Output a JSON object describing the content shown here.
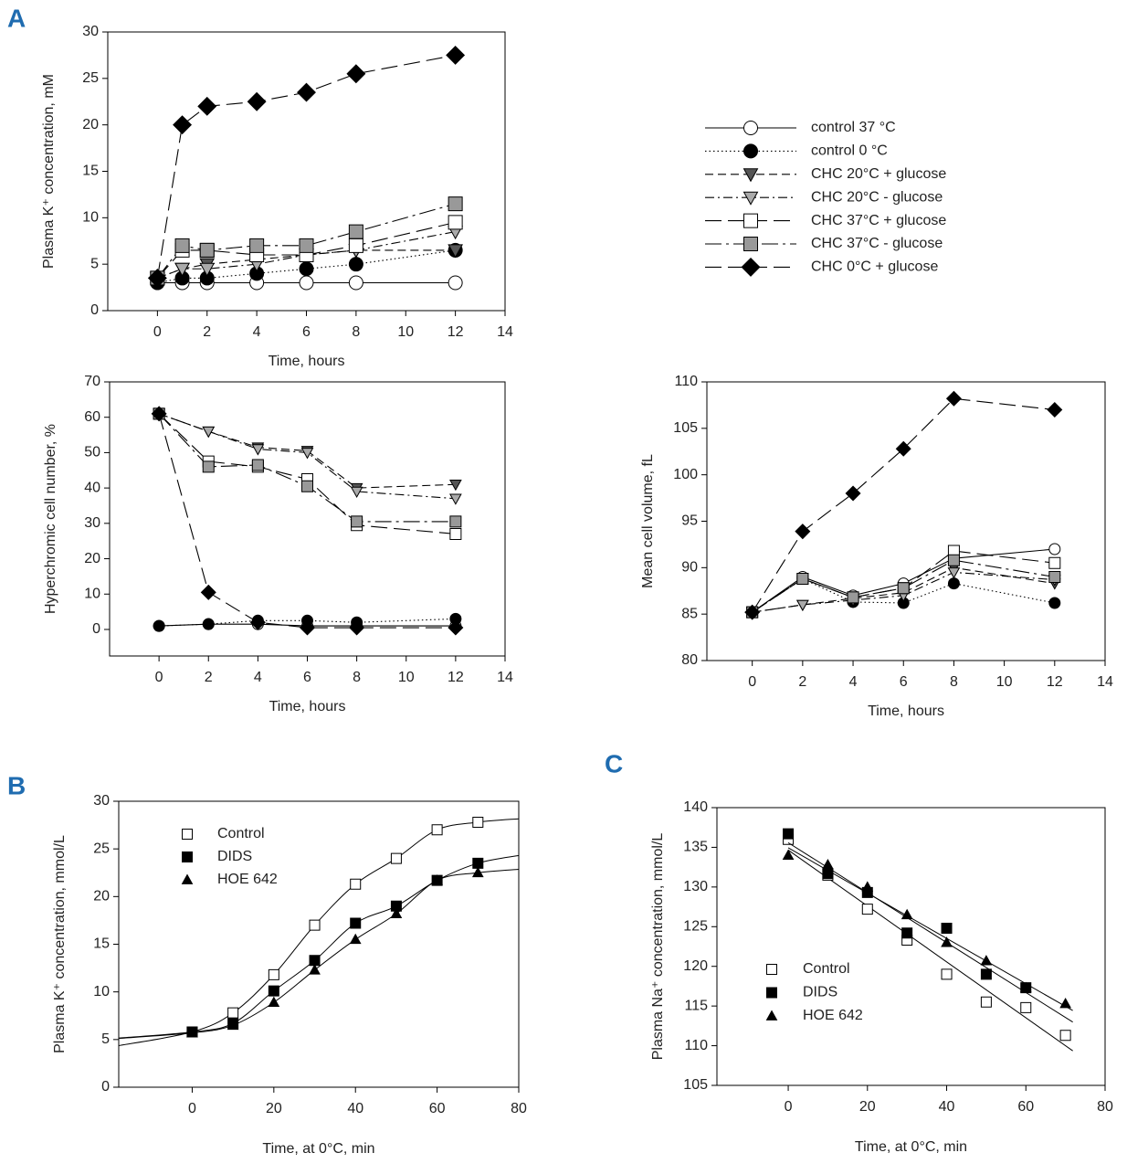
{
  "chart_data": [
    {
      "type": "line",
      "panel_label": "A",
      "xlabel": "Time, hours",
      "ylabel": "Plasma K⁺ concentration, mM",
      "x": [
        0,
        1,
        2,
        4,
        6,
        8,
        12
      ],
      "xlim": [
        -2,
        14
      ],
      "xticks": [
        0,
        2,
        4,
        6,
        8,
        10,
        12,
        14
      ],
      "ylim": [
        0,
        30
      ],
      "yticks": [
        0,
        5,
        10,
        15,
        20,
        25,
        30
      ],
      "line_color": "#000000",
      "legend": "outside-right",
      "series": [
        {
          "name": "control 37 °C",
          "color": "#ffffff",
          "marker": "circle",
          "dash": "solid",
          "values": [
            3,
            3,
            3,
            3,
            3,
            3,
            3
          ]
        },
        {
          "name": "control 0 °C",
          "color": "#000000",
          "marker": "circle",
          "dash": "dotted",
          "values": [
            3,
            3.5,
            3.5,
            4,
            4.5,
            5,
            6.5
          ]
        },
        {
          "name": "CHC 20°C + glucose",
          "color": "#555555",
          "marker": "triangle-down",
          "dash": "dashed",
          "values": [
            3.5,
            4.5,
            5,
            5.5,
            6,
            6.5,
            6.5
          ]
        },
        {
          "name": "CHC 20°C - glucose",
          "color": "#aaaaaa",
          "marker": "triangle-down",
          "dash": "dash-dot",
          "values": [
            3.5,
            4.5,
            4.5,
            5,
            6,
            6.5,
            8.5
          ]
        },
        {
          "name": "CHC 37°C + glucose",
          "color": "#ffffff",
          "marker": "square",
          "dash": "long-dash",
          "values": [
            3.5,
            6.5,
            6.5,
            6,
            6,
            7,
            9.5
          ]
        },
        {
          "name": "CHC 37°C - glucose",
          "color": "#999999",
          "marker": "square",
          "dash": "long-dash-dot",
          "values": [
            3.5,
            7,
            6.5,
            7,
            7,
            8.5,
            11.5
          ]
        },
        {
          "name": "CHC 0°C + glucose",
          "color": "#000000",
          "marker": "diamond",
          "dash": "long-dash",
          "values": [
            3.5,
            20,
            22,
            22.5,
            23.5,
            25.5,
            27.5
          ]
        }
      ]
    },
    {
      "type": "line",
      "xlabel": "Time, hours",
      "ylabel": "Hyperchromic cell number, %",
      "x": [
        0,
        2,
        4,
        6,
        8,
        12
      ],
      "xlim": [
        -2,
        14
      ],
      "xticks": [
        0,
        2,
        4,
        6,
        8,
        10,
        12,
        14
      ],
      "ylim": [
        -7.5,
        70
      ],
      "yticks": [
        0,
        10,
        20,
        30,
        40,
        50,
        60,
        70
      ],
      "line_color": "#000000",
      "series": [
        {
          "color": "#ffffff",
          "marker": "circle",
          "dash": "solid",
          "values": [
            1,
            1.5,
            1.5,
            1,
            1,
            1
          ]
        },
        {
          "color": "#000000",
          "marker": "circle",
          "dash": "dotted",
          "values": [
            1,
            1.5,
            2.5,
            2.5,
            2,
            3
          ]
        },
        {
          "color": "#555555",
          "marker": "triangle-down",
          "dash": "dashed",
          "values": [
            61,
            56,
            51.5,
            50.5,
            40,
            41
          ]
        },
        {
          "color": "#aaaaaa",
          "marker": "triangle-down",
          "dash": "dash-dot",
          "values": [
            61,
            56,
            51,
            50,
            39,
            37
          ]
        },
        {
          "color": "#ffffff",
          "marker": "square",
          "dash": "long-dash",
          "values": [
            61,
            47.5,
            46,
            42.5,
            29.5,
            27
          ]
        },
        {
          "color": "#999999",
          "marker": "square",
          "dash": "long-dash-dot",
          "values": [
            61,
            46,
            46.5,
            40.5,
            30.5,
            30.5
          ]
        },
        {
          "color": "#000000",
          "marker": "diamond",
          "dash": "long-dash",
          "values": [
            61,
            10.5,
            2,
            0.5,
            0.5,
            0.5
          ]
        }
      ]
    },
    {
      "type": "line",
      "xlabel": "Time, hours",
      "ylabel": "Mean cell volume, fL",
      "x": [
        0,
        2,
        4,
        6,
        8,
        12
      ],
      "xlim": [
        -1.8,
        14
      ],
      "xticks": [
        0,
        2,
        4,
        6,
        8,
        10,
        12,
        14
      ],
      "ylim": [
        80,
        110
      ],
      "yticks": [
        80,
        85,
        90,
        95,
        100,
        105,
        110
      ],
      "line_color": "#000000",
      "series": [
        {
          "color": "#ffffff",
          "marker": "circle",
          "dash": "solid",
          "values": [
            85.2,
            89,
            87,
            88.3,
            91,
            92
          ]
        },
        {
          "color": "#000000",
          "marker": "circle",
          "dash": "dotted",
          "values": [
            85.2,
            88.8,
            86.3,
            86.2,
            88.3,
            86.2
          ]
        },
        {
          "color": "#555555",
          "marker": "triangle-down",
          "dash": "dashed",
          "values": [
            85.2,
            86,
            86.7,
            87.3,
            90,
            88.3
          ]
        },
        {
          "color": "#aaaaaa",
          "marker": "triangle-down",
          "dash": "dash-dot",
          "values": [
            85.2,
            86,
            86.5,
            87,
            89.5,
            88.7
          ]
        },
        {
          "color": "#ffffff",
          "marker": "square",
          "dash": "long-dash",
          "values": [
            85.2,
            88.8,
            86.8,
            87.8,
            91.8,
            90.5
          ]
        },
        {
          "color": "#999999",
          "marker": "square",
          "dash": "long-dash-dot",
          "values": [
            85.2,
            88.8,
            86.8,
            87.8,
            90.8,
            89
          ]
        },
        {
          "color": "#000000",
          "marker": "diamond",
          "dash": "long-dash",
          "values": [
            85.2,
            93.9,
            98,
            102.8,
            108.2,
            107
          ]
        }
      ]
    },
    {
      "type": "scatter",
      "panel_label": "B",
      "xlabel": "Time, at 0°C, min",
      "ylabel": "Plasma K⁺ concentration, mmol/L",
      "x": [
        0,
        10,
        20,
        30,
        40,
        50,
        60,
        70
      ],
      "xlim": [
        -18,
        80
      ],
      "xticks": [
        0,
        20,
        40,
        60,
        80
      ],
      "ylim": [
        0,
        30
      ],
      "yticks": [
        0,
        5,
        10,
        15,
        20,
        25,
        30
      ],
      "fit": "smooth",
      "legend": "upper-left",
      "series": [
        {
          "name": "Control",
          "color": "#ffffff",
          "marker": "square",
          "values": [
            5.8,
            7.8,
            11.8,
            17,
            21.3,
            24,
            27,
            27.8
          ]
        },
        {
          "name": "DIDS",
          "color": "#000000",
          "marker": "square",
          "values": [
            5.8,
            6.7,
            10.1,
            13.3,
            17.2,
            19,
            21.7,
            23.5
          ]
        },
        {
          "name": "HOE 642",
          "color": "#000000",
          "marker": "triangle-up",
          "values": [
            5.7,
            6.5,
            8.9,
            12.3,
            15.5,
            18.2,
            21.7,
            22.5
          ]
        }
      ]
    },
    {
      "type": "scatter",
      "panel_label": "C",
      "xlabel": "Time, at 0°C, min",
      "ylabel": "Plasma Na⁺ concentration, mmol/L",
      "x": [
        0,
        10,
        20,
        30,
        40,
        50,
        60,
        70
      ],
      "xlim": [
        -18,
        80
      ],
      "xticks": [
        0,
        20,
        40,
        60,
        80
      ],
      "ylim": [
        105,
        140
      ],
      "yticks": [
        105,
        110,
        115,
        120,
        125,
        130,
        135,
        140
      ],
      "fit": "linear",
      "legend": "center-left",
      "series": [
        {
          "name": "Control",
          "color": "#ffffff",
          "marker": "square",
          "values": [
            136,
            131.5,
            127.2,
            123.3,
            119,
            115.5,
            114.8,
            111.3
          ]
        },
        {
          "name": "DIDS",
          "color": "#000000",
          "marker": "square",
          "values": [
            136.7,
            131.7,
            129.3,
            124.2,
            124.8,
            119,
            117.3,
            null
          ]
        },
        {
          "name": "HOE 642",
          "color": "#000000",
          "marker": "triangle-up",
          "values": [
            134,
            132.8,
            130,
            126.5,
            123,
            120.7,
            117.3,
            115.3
          ]
        }
      ]
    }
  ]
}
